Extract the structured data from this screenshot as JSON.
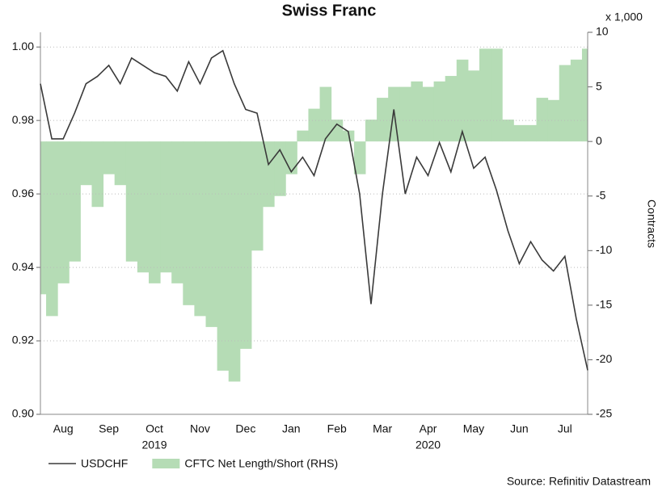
{
  "chart_data": {
    "type": "line",
    "title": "Swiss Franc",
    "categories": [
      null,
      null,
      "Aug",
      null,
      null,
      null,
      "Sep",
      null,
      null,
      null,
      "Oct",
      null,
      null,
      null,
      "Nov",
      null,
      null,
      null,
      "Dec",
      null,
      null,
      null,
      "Jan",
      null,
      null,
      null,
      "Feb",
      null,
      null,
      null,
      "Mar",
      null,
      null,
      null,
      "Apr",
      null,
      null,
      null,
      "May",
      null,
      null,
      null,
      "Jun",
      null,
      null,
      null,
      "Jul",
      null,
      null
    ],
    "x_group_labels": [
      "2019",
      "2020"
    ],
    "series": [
      {
        "name": "USDCHF",
        "color": "#3a3a3a",
        "values": [
          0.99,
          0.975,
          0.975,
          0.982,
          0.99,
          0.992,
          0.995,
          0.99,
          0.997,
          0.995,
          0.993,
          0.992,
          0.988,
          0.996,
          0.99,
          0.997,
          0.999,
          0.99,
          0.983,
          0.982,
          0.968,
          0.972,
          0.966,
          0.97,
          0.965,
          0.975,
          0.979,
          0.977,
          0.96,
          0.93,
          0.96,
          0.983,
          0.96,
          0.97,
          0.965,
          0.974,
          0.966,
          0.977,
          0.967,
          0.97,
          0.961,
          0.95,
          0.941,
          0.947,
          0.942,
          0.939,
          0.943,
          0.926,
          0.912
        ]
      },
      {
        "name": "CFTC Net Length/Short (RHS)",
        "color": "#b5dcb5",
        "axis": "y2",
        "kind": "step-area",
        "values": [
          -14,
          -16,
          -13,
          -11,
          -4,
          -6,
          -3,
          -4,
          -11,
          -12,
          -13,
          -12,
          -13,
          -15,
          -16,
          -17,
          -21,
          -22,
          -19,
          -10,
          -6,
          -5,
          -3,
          1,
          3,
          5,
          2,
          1,
          -3,
          2,
          4,
          5,
          5,
          5.5,
          5,
          5.5,
          6,
          7.5,
          6.5,
          8.5,
          8.5,
          2,
          1.5,
          1.5,
          4,
          3.8,
          7,
          7.5,
          8.5
        ]
      }
    ],
    "ylim": [
      0.9,
      1.004
    ],
    "yticks": [
      {
        "value": 0.9,
        "label": "0.90"
      },
      {
        "value": 0.92,
        "label": "0.92"
      },
      {
        "value": 0.94,
        "label": "0.94"
      },
      {
        "value": 0.96,
        "label": "0.96"
      },
      {
        "value": 0.98,
        "label": "0.98"
      },
      {
        "value": 1.0,
        "label": "1.00"
      }
    ],
    "y2lim": [
      -25,
      10
    ],
    "y2ticks": [
      -25,
      -20,
      -15,
      -10,
      -5,
      0,
      5,
      10
    ],
    "y2label": "Contracts",
    "y2_unit": "x 1,000",
    "source": "Source: Refinitiv Datastream",
    "grid": true
  }
}
